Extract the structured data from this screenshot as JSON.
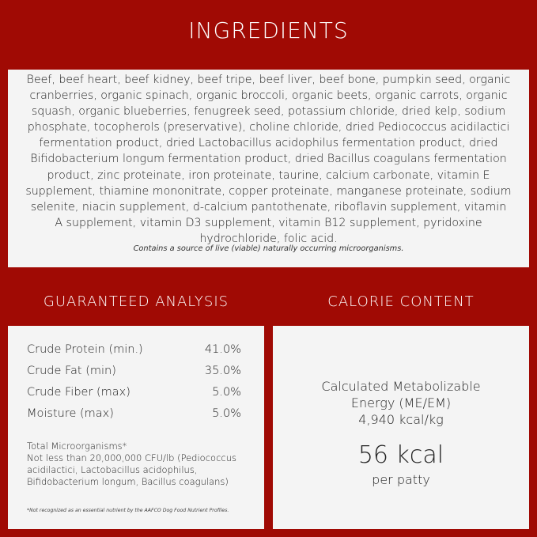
{
  "ingredients": {
    "title": "INGREDIENTS",
    "text": "Beef, beef heart, beef kidney, beef tripe, beef liver, beef bone, pumpkin seed, organic cranberries, organic spinach, organic broccoli, organic beets, organic carrots, organic squash, organic blueberries, fenugreek seed, potassium chloride, dried kelp, sodium phosphate, tocopherols (preservative), choline chloride, dried Pediococcus acidilactici fermentation product, dried Lactobacillus acidophilus fermentation product, dried Bifidobacterium longum fermentation product, dried Bacillus coagulans fermentation product, zinc proteinate, iron proteinate, taurine, calcium carbonate, vitamin E supplement, thiamine mononitrate, copper proteinate, manganese proteinate, sodium selenite, niacin supplement, d-calcium pantothenate, riboflavin supplement, vitamin A supplement, vitamin D3 supplement, vitamin B12 supplement, pyridoxine hydrochloride, folic acid.",
    "note": "Contains a source of live (viable) naturally occurring microorganisms."
  },
  "guaranteed_analysis": {
    "title": "GUARANTEED ANALYSIS",
    "rows": [
      {
        "label": "Crude Protein (min.)",
        "value": "41.0%"
      },
      {
        "label": "Crude Fat (min)",
        "value": "35.0%"
      },
      {
        "label": "Crude Fiber (max)",
        "value": "5.0%"
      },
      {
        "label": "Moisture (max)",
        "value": "5.0%"
      }
    ],
    "micro_title": "Total Microorganisms*",
    "micro_text": "Not less than 20,000,000 CFU/lb (Pediococcus acidilactici, Lactobacillus acidophilus, Bifidobacterium longum, Bacillus coagulans)",
    "footnote": "*Not recognized as an essential nutrient by the AAFCO Dog Food Nutrient Profiles."
  },
  "calorie_content": {
    "title": "CALORIE CONTENT",
    "line1": "Calculated Metabolizable",
    "line2": "Energy (ME/EM)",
    "line3": "4,940 kcal/kg",
    "big": "56 kcal",
    "sub": "per patty"
  },
  "colors": {
    "background": "#a00a04",
    "panel": "#f4f4f4"
  }
}
